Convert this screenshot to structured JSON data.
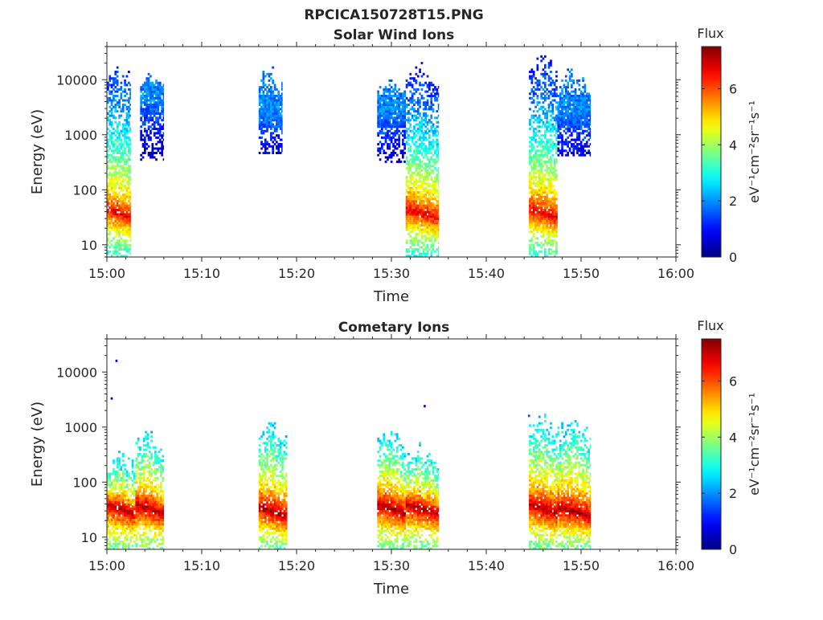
{
  "figure": {
    "title": "RPCICA150728T15.PNG"
  },
  "chart_data": [
    {
      "type": "heatmap",
      "title": "Solar Wind Ions",
      "xlabel": "Time",
      "ylabel": "Energy (eV)",
      "x_ticks": [
        "15:00",
        "15:10",
        "15:20",
        "15:30",
        "15:40",
        "15:50",
        "16:00"
      ],
      "xlim": [
        "15:00",
        "16:00"
      ],
      "y_scale": "log",
      "y_ticks": [
        10,
        100,
        1000,
        10000
      ],
      "y_tick_labels": [
        "10",
        "100",
        "1000",
        "10000"
      ],
      "ylim": [
        6,
        40000
      ],
      "colorbar": {
        "label": "Flux",
        "unit": "eV⁻¹cm⁻²sr⁻¹s⁻¹",
        "range": [
          0,
          7.5
        ],
        "ticks": [
          0,
          2,
          4,
          6
        ],
        "colormap": "jet"
      },
      "clusters": [
        {
          "t_start": "15:00",
          "t_end": "15:02.5",
          "e_peak": 45,
          "flux_peak": 7.0,
          "e_hi": 18000,
          "hi_flux": 1.2,
          "lo_flux": 3.0
        },
        {
          "t_start": "15:03.5",
          "t_end": "15:06",
          "e_peak": 5000,
          "flux_peak": 2.0,
          "e_hi": 14000,
          "hi_flux": 1.8,
          "lo_flux": 0,
          "e_lo": 350
        },
        {
          "t_start": "15:16",
          "t_end": "15:18.5",
          "e_peak": 3000,
          "flux_peak": 2.0,
          "e_hi": 16000,
          "hi_flux": 1.8,
          "lo_flux": 0,
          "e_lo": 450
        },
        {
          "t_start": "15:28.5",
          "t_end": "15:31.5",
          "e_peak": 3000,
          "flux_peak": 2.0,
          "e_hi": 12000,
          "hi_flux": 1.8,
          "lo_flux": 0,
          "e_lo": 300
        },
        {
          "t_start": "15:31.5",
          "t_end": "15:35",
          "e_peak": 45,
          "flux_peak": 7.0,
          "e_hi": 17000,
          "hi_flux": 1.0,
          "lo_flux": 3.0
        },
        {
          "t_start": "15:44.5",
          "t_end": "15:47.5",
          "e_peak": 45,
          "flux_peak": 7.0,
          "e_hi": 25000,
          "hi_flux": 1.0,
          "lo_flux": 3.0
        },
        {
          "t_start": "15:47.5",
          "t_end": "15:51",
          "e_peak": 3000,
          "flux_peak": 2.0,
          "e_hi": 14000,
          "hi_flux": 1.8,
          "lo_flux": 0,
          "e_lo": 400
        }
      ]
    },
    {
      "type": "heatmap",
      "title": "Cometary Ions",
      "xlabel": "Time",
      "ylabel": "Energy (eV)",
      "x_ticks": [
        "15:00",
        "15:10",
        "15:20",
        "15:30",
        "15:40",
        "15:50",
        "16:00"
      ],
      "xlim": [
        "15:00",
        "16:00"
      ],
      "y_scale": "log",
      "y_ticks": [
        10,
        100,
        1000,
        10000
      ],
      "y_tick_labels": [
        "10",
        "100",
        "1000",
        "10000"
      ],
      "ylim": [
        6,
        40000
      ],
      "colorbar": {
        "label": "Flux",
        "unit": "eV⁻¹cm⁻²sr⁻¹s⁻¹",
        "range": [
          0,
          7.5
        ],
        "ticks": [
          0,
          2,
          4,
          6
        ],
        "colormap": "jet"
      },
      "clusters": [
        {
          "t_start": "15:00",
          "t_end": "15:03",
          "e_peak": 40,
          "flux_peak": 7.5,
          "e_hi": 300,
          "hi_flux": 2.5,
          "lo_flux": 3.5
        },
        {
          "t_start": "15:03",
          "t_end": "15:06",
          "e_peak": 40,
          "flux_peak": 7.5,
          "e_hi": 800,
          "hi_flux": 2.5,
          "lo_flux": 3.5
        },
        {
          "t_start": "15:16",
          "t_end": "15:19",
          "e_peak": 35,
          "flux_peak": 7.5,
          "e_hi": 1000,
          "hi_flux": 2.5,
          "lo_flux": 3.5
        },
        {
          "t_start": "15:28.5",
          "t_end": "15:31.5",
          "e_peak": 40,
          "flux_peak": 7.5,
          "e_hi": 900,
          "hi_flux": 2.5,
          "lo_flux": 3.5
        },
        {
          "t_start": "15:31.5",
          "t_end": "15:35",
          "e_peak": 40,
          "flux_peak": 7.5,
          "e_hi": 400,
          "hi_flux": 2.5,
          "lo_flux": 3.5
        },
        {
          "t_start": "15:44.5",
          "t_end": "15:47.5",
          "e_peak": 40,
          "flux_peak": 7.5,
          "e_hi": 1500,
          "hi_flux": 2.5,
          "lo_flux": 3.5
        },
        {
          "t_start": "15:47.5",
          "t_end": "15:51",
          "e_peak": 35,
          "flux_peak": 7.5,
          "e_hi": 1300,
          "hi_flux": 2.5,
          "lo_flux": 3.5
        }
      ],
      "isolated_points": [
        {
          "t": "15:01",
          "e": 16000,
          "flux": 0.8
        },
        {
          "t": "15:00.5",
          "e": 3300,
          "flux": 0.8
        },
        {
          "t": "15:33.5",
          "e": 2400,
          "flux": 0.8
        },
        {
          "t": "15:44.5",
          "e": 1600,
          "flux": 1.5
        }
      ]
    }
  ]
}
